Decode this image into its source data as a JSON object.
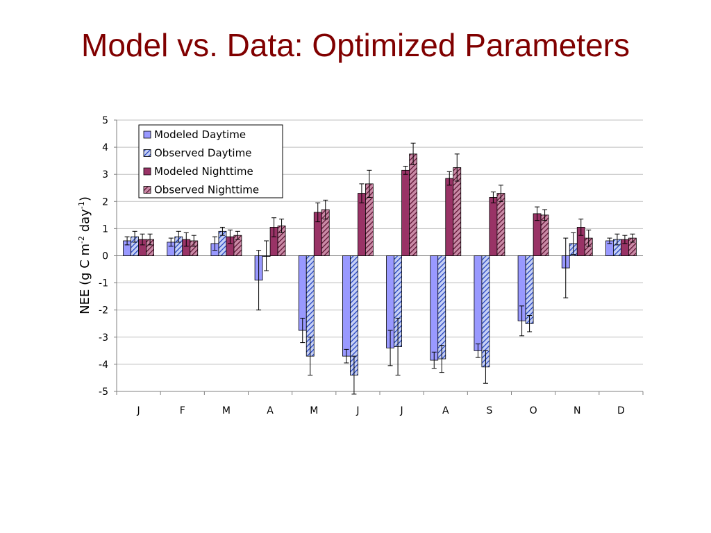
{
  "slide": {
    "title": "Model vs. Data: Optimized Parameters"
  },
  "colors": {
    "title": "#800000",
    "modeled_daytime": "#9999ff",
    "observed_daytime": "#3d5bd8",
    "modeled_nighttime": "#993366",
    "observed_nighttime": "#7a2040"
  },
  "chart_data": {
    "type": "bar",
    "title": "",
    "xlabel": "",
    "ylabel_parts": [
      "NEE (g C m",
      "-2",
      " day",
      "-1",
      ")"
    ],
    "ylim": [
      -5,
      5
    ],
    "yticks": [
      5,
      4,
      3,
      2,
      1,
      0,
      -1,
      -2,
      -3,
      -4,
      -5
    ],
    "grid": true,
    "legend_position": "top-left",
    "categories": [
      "J",
      "F",
      "M",
      "A",
      "M",
      "J",
      "J",
      "A",
      "S",
      "O",
      "N",
      "D"
    ],
    "series": [
      {
        "name": "Modeled Daytime",
        "pattern": "solid",
        "values": [
          0.55,
          0.5,
          0.45,
          -0.9,
          -2.75,
          -3.7,
          -3.4,
          -3.85,
          -3.5,
          -2.4,
          -0.45,
          0.55
        ],
        "errors": [
          0.15,
          0.15,
          0.25,
          1.1,
          0.45,
          0.25,
          0.65,
          0.3,
          0.25,
          0.55,
          1.1,
          0.1
        ]
      },
      {
        "name": "Observed Daytime",
        "pattern": "hatched",
        "values": [
          0.7,
          0.7,
          0.9,
          0.0,
          -3.7,
          -4.4,
          -3.35,
          -3.8,
          -4.1,
          -2.5,
          0.45,
          0.6
        ],
        "errors": [
          0.2,
          0.2,
          0.15,
          0.55,
          0.7,
          0.7,
          1.05,
          0.5,
          0.6,
          0.3,
          0.4,
          0.2
        ]
      },
      {
        "name": "Modeled Nighttime",
        "pattern": "solid",
        "values": [
          0.6,
          0.6,
          0.7,
          1.05,
          1.6,
          2.3,
          3.15,
          2.85,
          2.15,
          1.55,
          1.05,
          0.6
        ],
        "errors": [
          0.2,
          0.25,
          0.25,
          0.35,
          0.35,
          0.35,
          0.15,
          0.25,
          0.2,
          0.25,
          0.3,
          0.15
        ]
      },
      {
        "name": "Observed Nighttime",
        "pattern": "hatched",
        "values": [
          0.6,
          0.55,
          0.75,
          1.1,
          1.7,
          2.65,
          3.75,
          3.25,
          2.3,
          1.5,
          0.65,
          0.65
        ],
        "errors": [
          0.2,
          0.2,
          0.15,
          0.25,
          0.35,
          0.5,
          0.4,
          0.5,
          0.3,
          0.2,
          0.3,
          0.15
        ]
      }
    ]
  }
}
